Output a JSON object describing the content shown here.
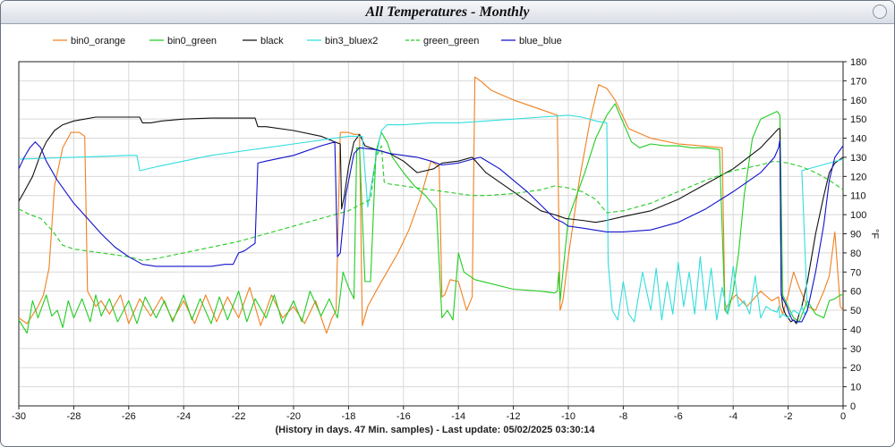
{
  "window": {
    "title": "All Temperatures - Monthly"
  },
  "footer": {
    "text": "(History in days. 47 Min. samples) - Last update: 05/02/2025 03:30:14"
  },
  "chart_data": {
    "type": "line",
    "title": "All Temperatures - Monthly",
    "xlabel": "(History in days. 47 Min. samples) - Last update: 05/02/2025 03:30:14",
    "ylabel": "°F",
    "xlim": [
      -30,
      0
    ],
    "ylim": [
      0,
      180
    ],
    "xticks": [
      -30,
      -28,
      -26,
      -24,
      -22,
      -20,
      -18,
      -16,
      -14,
      -12,
      -10,
      -8,
      -6,
      -4,
      -2,
      0
    ],
    "yticks": [
      0,
      10,
      20,
      30,
      40,
      50,
      60,
      70,
      80,
      90,
      100,
      110,
      120,
      130,
      140,
      150,
      160,
      170,
      180
    ],
    "grid": true,
    "legend_position": "top",
    "series": [
      {
        "name": "bin0_orange",
        "color": "#f08020",
        "dash": false,
        "x": [
          -30,
          -29.7,
          -29.3,
          -29.1,
          -28.9,
          -28.7,
          -28.4,
          -28.1,
          -27.8,
          -27.6,
          -27.5,
          -27.2,
          -27.0,
          -26.7,
          -26.3,
          -26.0,
          -25.6,
          -25.2,
          -24.8,
          -24.4,
          -24.0,
          -23.6,
          -23.2,
          -22.8,
          -22.4,
          -22.0,
          -21.6,
          -21.2,
          -20.8,
          -20.4,
          -20.0,
          -19.6,
          -19.2,
          -18.8,
          -18.6,
          -18.45,
          -18.3,
          -18.0,
          -17.8,
          -17.6,
          -17.5,
          -17.3,
          -17.0,
          -16.6,
          -16.2,
          -15.8,
          -15.4,
          -15.0,
          -14.7,
          -14.6,
          -14.5,
          -14.3,
          -14.0,
          -13.7,
          -13.5,
          -13.4,
          -13.2,
          -12.8,
          -12.0,
          -11.2,
          -10.4,
          -10.3,
          -10.2,
          -10.0,
          -9.6,
          -9.2,
          -8.9,
          -8.6,
          -8.3,
          -7.8,
          -7.0,
          -6.0,
          -5.2,
          -4.4,
          -4.3,
          -4.1,
          -3.9,
          -3.5,
          -3.0,
          -2.6,
          -2.35,
          -2.3,
          -2.2,
          -2.0,
          -1.8,
          -1.6,
          -1.3,
          -1.0,
          -0.7,
          -0.5,
          -0.3,
          -0.1,
          0
        ],
        "y": [
          46,
          43,
          52,
          58,
          72,
          115,
          135,
          143,
          143,
          141,
          60,
          52,
          55,
          48,
          58,
          43,
          56,
          47,
          57,
          45,
          55,
          43,
          58,
          44,
          57,
          46,
          62,
          42,
          58,
          46,
          52,
          43,
          55,
          38,
          46,
          50,
          143,
          143,
          142,
          142,
          42,
          52,
          60,
          70,
          80,
          92,
          108,
          128,
          125,
          57,
          58,
          66,
          65,
          50,
          57,
          172,
          170,
          165,
          160,
          156,
          152,
          50,
          55,
          78,
          118,
          150,
          168,
          166,
          160,
          145,
          140,
          137,
          136,
          135,
          50,
          55,
          58,
          52,
          60,
          55,
          57,
          52,
          48,
          58,
          70,
          62,
          52,
          50,
          60,
          68,
          91,
          52,
          50
        ]
      },
      {
        "name": "bin0_green",
        "color": "#22cc22",
        "dash": false,
        "x": [
          -30,
          -29.7,
          -29.5,
          -29.3,
          -29.0,
          -28.8,
          -28.6,
          -28.4,
          -28.2,
          -28.0,
          -27.7,
          -27.4,
          -27.2,
          -27.0,
          -26.7,
          -26.4,
          -26.0,
          -25.7,
          -25.4,
          -25.0,
          -24.7,
          -24.4,
          -24.0,
          -23.7,
          -23.4,
          -23.0,
          -22.7,
          -22.4,
          -22.0,
          -21.7,
          -21.4,
          -21.0,
          -20.7,
          -20.4,
          -20.0,
          -19.7,
          -19.4,
          -19.0,
          -18.7,
          -18.4,
          -18.2,
          -18.0,
          -17.8,
          -17.7,
          -17.6,
          -17.4,
          -17.2,
          -17.0,
          -16.8,
          -16.6,
          -16.4,
          -16.0,
          -15.6,
          -15.2,
          -14.8,
          -14.6,
          -14.4,
          -14.2,
          -14.0,
          -13.8,
          -13.6,
          -13.4,
          -12.0,
          -11.0,
          -10.5,
          -10.4,
          -10.35,
          -10.3,
          -10.0,
          -9.7,
          -9.4,
          -9.0,
          -8.6,
          -8.3,
          -8.0,
          -7.7,
          -7.4,
          -7.0,
          -6.5,
          -6.0,
          -5.5,
          -5.0,
          -4.5,
          -4.3,
          -4.2,
          -4.0,
          -3.8,
          -3.6,
          -3.3,
          -3.0,
          -2.7,
          -2.4,
          -2.3,
          -2.2,
          -2.0,
          -1.8,
          -1.6,
          -1.3,
          -1.0,
          -0.7,
          -0.5,
          -0.3,
          -0.1,
          0
        ],
        "y": [
          45,
          38,
          55,
          46,
          58,
          47,
          50,
          41,
          55,
          46,
          56,
          44,
          58,
          47,
          56,
          44,
          55,
          43,
          57,
          46,
          55,
          44,
          58,
          45,
          56,
          43,
          57,
          45,
          60,
          44,
          56,
          46,
          58,
          43,
          55,
          44,
          60,
          47,
          56,
          46,
          70,
          62,
          56,
          135,
          135,
          65,
          65,
          133,
          143,
          138,
          130,
          122,
          115,
          110,
          103,
          46,
          50,
          45,
          80,
          70,
          68,
          66,
          61,
          60,
          59,
          60,
          70,
          55,
          98,
          110,
          122,
          140,
          152,
          158,
          148,
          138,
          135,
          137,
          136,
          136,
          135,
          135,
          134,
          50,
          48,
          60,
          80,
          110,
          140,
          150,
          152,
          154,
          152,
          58,
          52,
          46,
          44,
          55,
          48,
          46,
          55,
          56,
          58,
          58
        ]
      },
      {
        "name": "black",
        "color": "#111111",
        "dash": false,
        "x": [
          -30,
          -29.8,
          -29.5,
          -29.2,
          -29.0,
          -28.7,
          -28.4,
          -28.0,
          -27.6,
          -27.2,
          -26.8,
          -26.4,
          -26.0,
          -25.6,
          -25.5,
          -25.2,
          -24.8,
          -24.0,
          -23.0,
          -22.0,
          -21.4,
          -21.3,
          -21.0,
          -20.0,
          -19.0,
          -18.5,
          -18.3,
          -18.25,
          -18.15,
          -18.0,
          -17.8,
          -17.6,
          -17.4,
          -17.0,
          -16.5,
          -16.0,
          -15.5,
          -14.9,
          -14.6,
          -14.0,
          -13.5,
          -13.0,
          -12.0,
          -11.0,
          -10.5,
          -10.3,
          -10.1,
          -9.5,
          -9.0,
          -8.6,
          -8.0,
          -7.0,
          -6.0,
          -5.0,
          -4.0,
          -3.0,
          -2.35,
          -2.3,
          -2.25,
          -2.2,
          -2.1,
          -2.0,
          -1.9,
          -1.8,
          -1.7,
          -1.6,
          -1.5,
          -1.3,
          -1.0,
          -0.7,
          -0.5,
          -0.3,
          0
        ],
        "y": [
          107,
          112,
          120,
          132,
          138,
          144,
          147,
          149,
          150,
          151,
          151,
          151,
          151,
          151,
          148,
          148,
          149,
          150,
          150.5,
          150.5,
          150.5,
          146,
          146,
          144,
          141,
          138,
          137,
          103,
          110,
          125,
          138,
          142,
          136,
          134,
          132,
          128,
          122,
          124,
          127,
          128,
          130,
          122,
          112,
          102,
          100,
          99,
          98,
          97,
          96,
          97,
          99,
          102,
          108,
          116,
          124,
          135,
          145,
          145,
          60,
          52,
          48,
          46,
          44,
          45,
          43,
          48,
          52,
          65,
          90,
          110,
          122,
          127,
          130
        ]
      },
      {
        "name": "bin3_bluex2",
        "color": "#33dddd",
        "dash": false,
        "x": [
          -30,
          -29.0,
          -28.0,
          -27.0,
          -26.0,
          -25.7,
          -25.6,
          -25.0,
          -24.0,
          -23.0,
          -22.0,
          -21.0,
          -20.0,
          -19.0,
          -18.5,
          -18.0,
          -17.5,
          -17.3,
          -17.0,
          -16.8,
          -16.6,
          -16.0,
          -15.0,
          -14.0,
          -13.0,
          -12.0,
          -11.0,
          -10.0,
          -9.5,
          -9.0,
          -8.6,
          -8.55,
          -8.4,
          -8.2,
          -8.0,
          -7.8,
          -7.6,
          -7.3,
          -7.0,
          -6.8,
          -6.6,
          -6.4,
          -6.2,
          -6.0,
          -5.8,
          -5.6,
          -5.4,
          -5.2,
          -5.0,
          -4.8,
          -4.6,
          -4.4,
          -4.2,
          -4.0,
          -3.8,
          -3.6,
          -3.4,
          -3.2,
          -3.0,
          -2.8,
          -2.6,
          -2.4,
          -2.35,
          -2.3,
          -2.2,
          -2.0,
          -1.8,
          -1.6,
          -1.5,
          -1.4,
          -1.3,
          -1.5,
          -1.0,
          -0.5,
          0
        ],
        "y": [
          129,
          129.5,
          130,
          130.5,
          131,
          131,
          123,
          125,
          128,
          131,
          133,
          135,
          137,
          139,
          140,
          141,
          141,
          104,
          130,
          144,
          147,
          147,
          148,
          148,
          149,
          150,
          151,
          152,
          151,
          149,
          148,
          75,
          50,
          45,
          65,
          48,
          44,
          70,
          50,
          72,
          45,
          65,
          48,
          75,
          52,
          70,
          48,
          78,
          50,
          72,
          45,
          62,
          48,
          73,
          52,
          55,
          48,
          68,
          46,
          52,
          50,
          49,
          52,
          46,
          48,
          46,
          50,
          48,
          52,
          48,
          50,
          123,
          125,
          127,
          129
        ]
      },
      {
        "name": "green_green",
        "color": "#22cc22",
        "dash": true,
        "x": [
          -30,
          -29.6,
          -29.2,
          -28.8,
          -28.4,
          -28.0,
          -27.0,
          -26.0,
          -25.5,
          -25.0,
          -24.0,
          -23.0,
          -22.0,
          -21.0,
          -20.0,
          -19.0,
          -18.0,
          -17.6,
          -17.2,
          -17.0,
          -16.8,
          -16.7,
          -16.5,
          -16.0,
          -15.0,
          -14.0,
          -13.5,
          -13.0,
          -12.0,
          -11.0,
          -10.5,
          -10.0,
          -9.5,
          -9.0,
          -8.6,
          -8.0,
          -7.0,
          -6.0,
          -5.0,
          -4.0,
          -3.0,
          -2.5,
          -2.0,
          -1.5,
          -1.0,
          -0.5,
          0
        ],
        "y": [
          103,
          100,
          98,
          92,
          84,
          82,
          80,
          78,
          76,
          77,
          80,
          83,
          86,
          90,
          94,
          98,
          102,
          105,
          108,
          130,
          136,
          117,
          116,
          115,
          113,
          111,
          110,
          110,
          111,
          113,
          115,
          114,
          112,
          108,
          101,
          102,
          106,
          112,
          118,
          123,
          126,
          128,
          127,
          125,
          122,
          118,
          113
        ]
      },
      {
        "name": "blue_blue",
        "color": "#1111cc",
        "dash": false,
        "x": [
          -30,
          -29.8,
          -29.6,
          -29.4,
          -29.2,
          -29.0,
          -28.6,
          -28.0,
          -27.5,
          -27.0,
          -26.5,
          -26.0,
          -25.5,
          -25.0,
          -24.0,
          -23.0,
          -22.5,
          -22.2,
          -22.0,
          -21.8,
          -21.5,
          -21.4,
          -21.3,
          -21.0,
          -20.0,
          -19.0,
          -18.5,
          -18.4,
          -18.3,
          -18.1,
          -17.8,
          -17.6,
          -17.0,
          -16.5,
          -16.0,
          -15.5,
          -15.0,
          -14.6,
          -14.0,
          -13.5,
          -13.2,
          -12.5,
          -11.5,
          -10.5,
          -10.2,
          -10.0,
          -9.5,
          -8.6,
          -8.0,
          -7.0,
          -6.0,
          -5.0,
          -4.0,
          -3.0,
          -2.5,
          -2.35,
          -2.3,
          -2.25,
          -2.15,
          -2.05,
          -1.95,
          -1.85,
          -1.7,
          -1.5,
          -1.3,
          -1.0,
          -0.7,
          -0.5,
          -0.3,
          0
        ],
        "y": [
          124,
          130,
          135,
          138,
          135,
          128,
          118,
          106,
          98,
          90,
          83,
          78,
          74,
          73,
          73,
          73,
          74,
          74,
          80,
          81,
          84,
          85,
          127,
          128,
          131,
          136,
          138,
          78,
          80,
          110,
          132,
          135,
          134,
          132,
          131,
          130,
          128,
          126,
          127,
          129,
          130,
          124,
          112,
          98,
          96,
          94,
          93,
          91,
          91,
          92,
          96,
          103,
          112,
          122,
          130,
          135,
          139,
          58,
          55,
          52,
          48,
          45,
          44,
          44,
          50,
          70,
          95,
          118,
          130,
          136
        ]
      }
    ]
  }
}
